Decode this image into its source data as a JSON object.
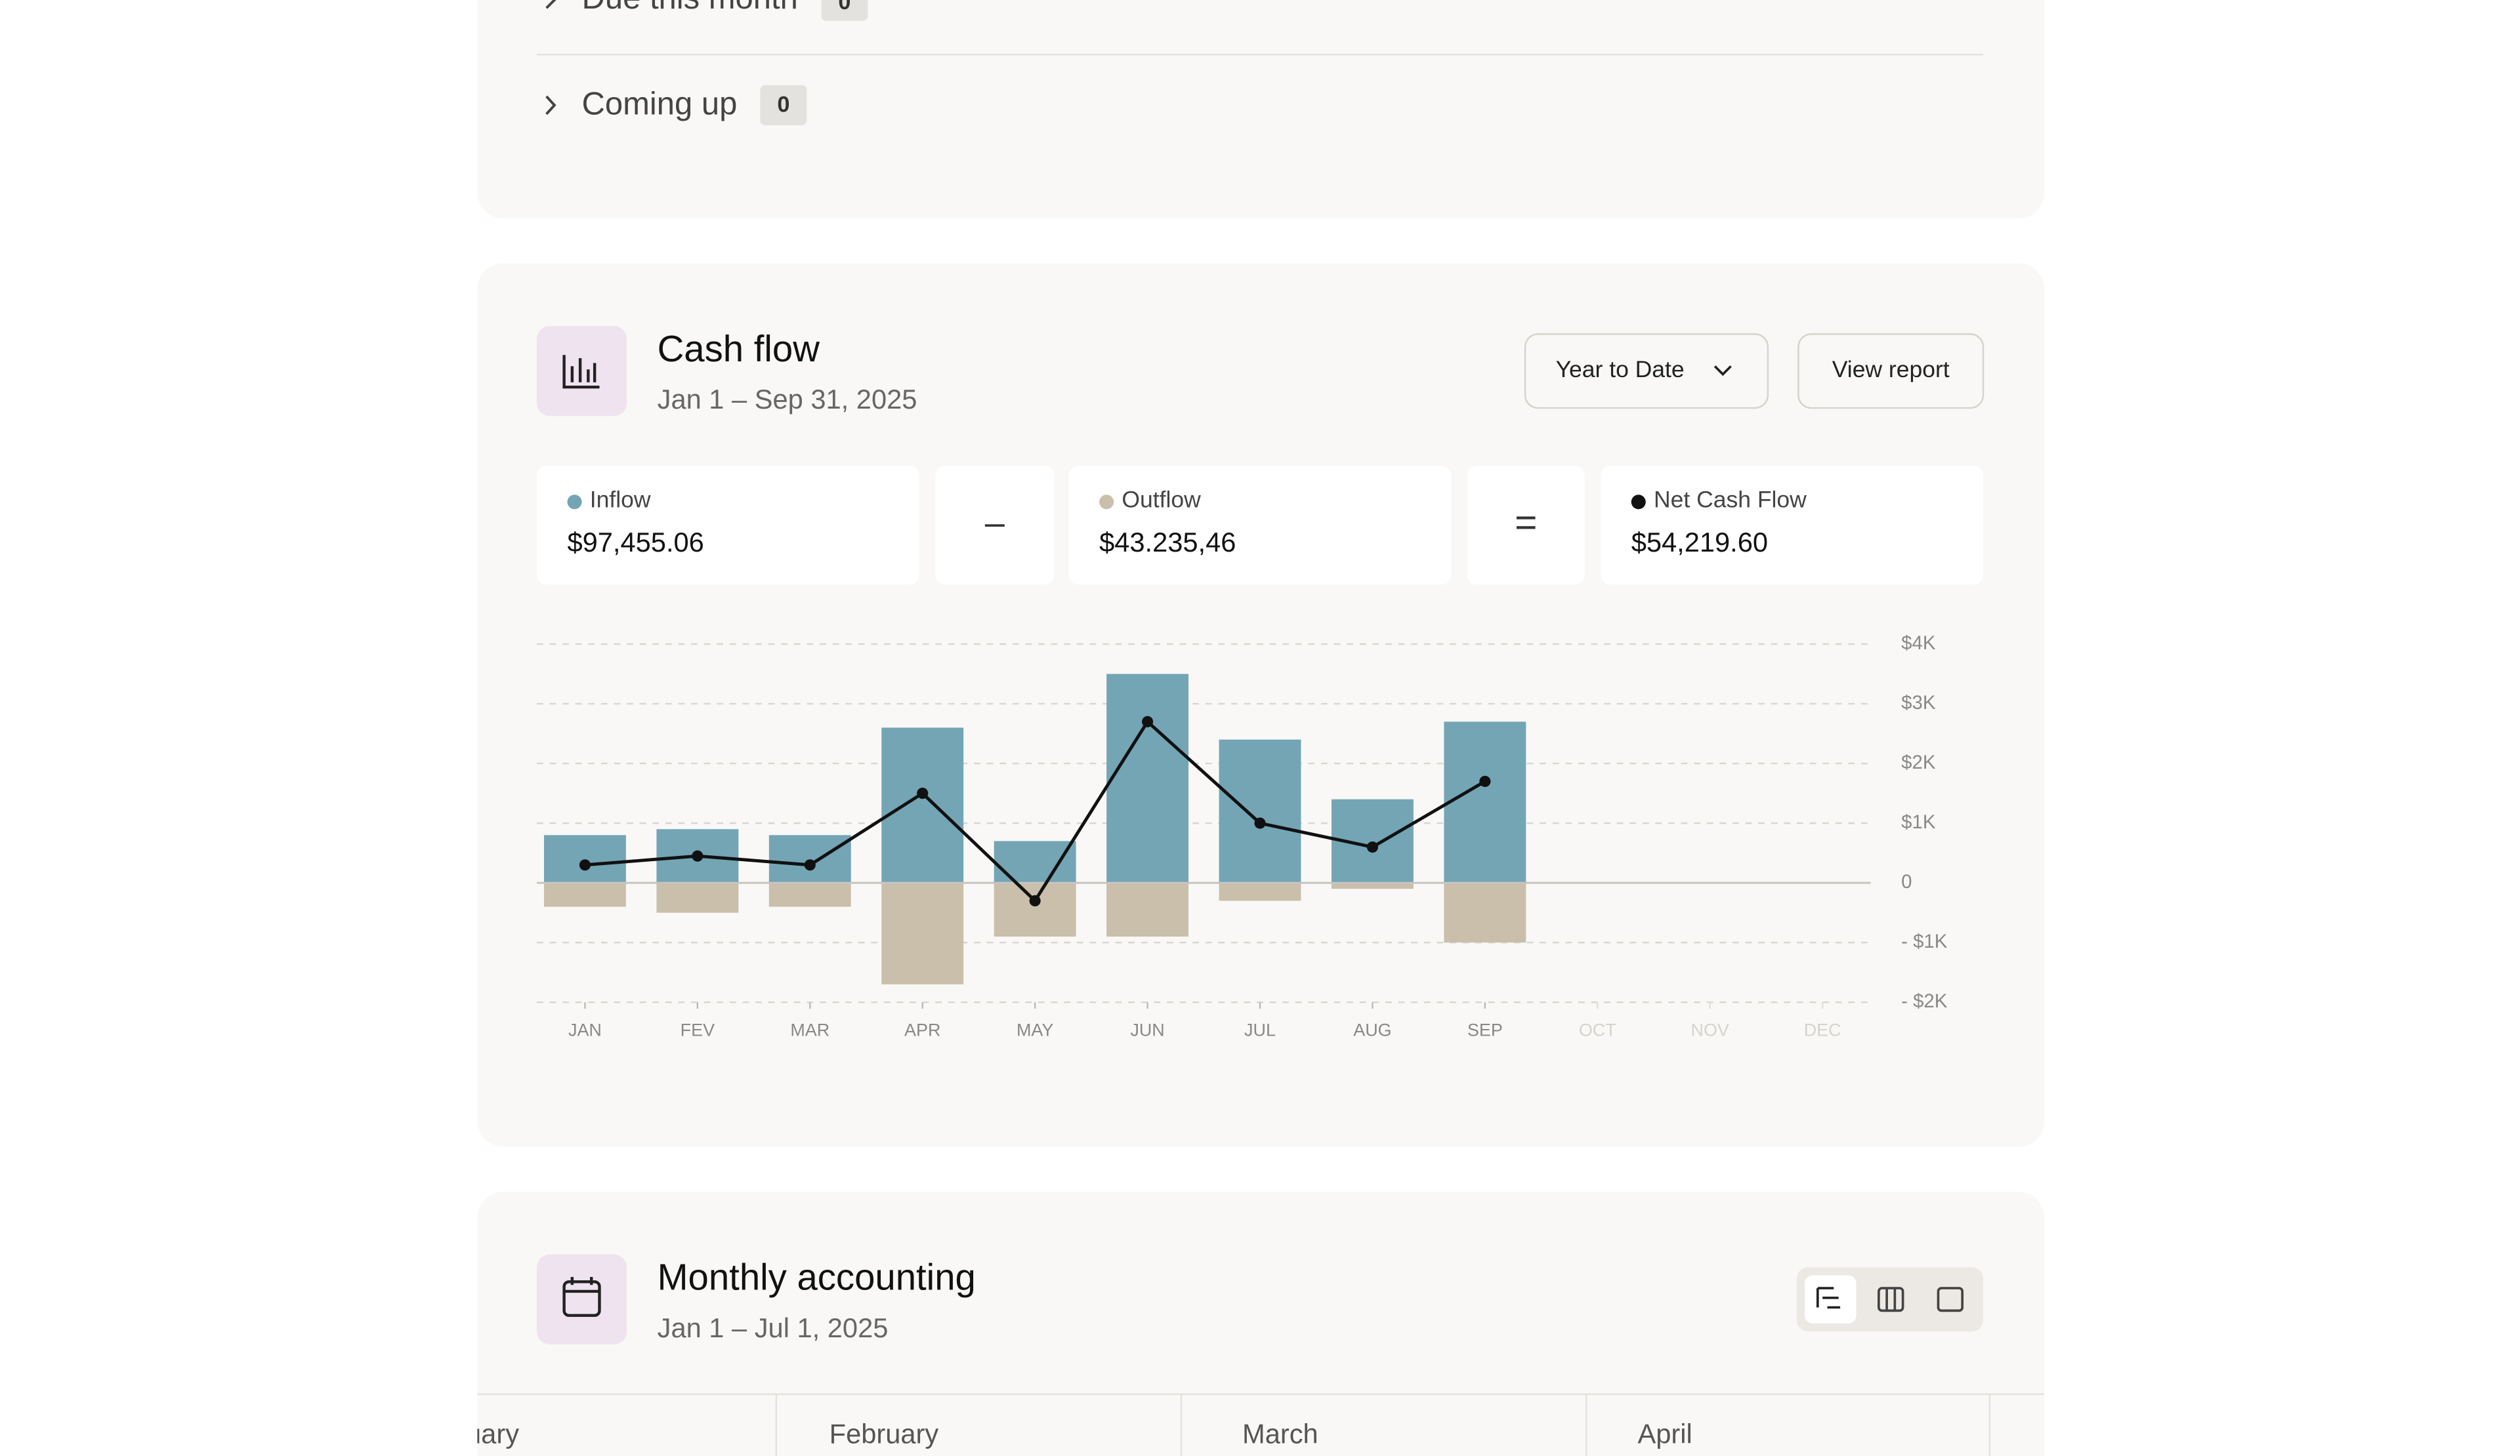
{
  "upcoming": {
    "groups": [
      {
        "label": "Due this month",
        "count": "0"
      },
      {
        "label": "Coming up",
        "count": "0"
      }
    ]
  },
  "cash_flow": {
    "title": "Cash flow",
    "subtitle": "Jan 1 – Sep 31, 2025",
    "period_button": "Year to Date",
    "report_button": "View report",
    "totals": [
      "$97,455.06",
      "$43.235,46",
      "$54,219.60"
    ],
    "operators": [
      "–",
      "="
    ]
  },
  "chart_data": {
    "type": "bar_line",
    "categories": [
      "JAN",
      "FEV",
      "MAR",
      "APR",
      "MAY",
      "JUN",
      "JUL",
      "AUG",
      "SEP",
      "OCT",
      "NOV",
      "DEC"
    ],
    "series": [
      {
        "name": "Inflow",
        "color": "#73a5b5",
        "values": [
          800,
          900,
          800,
          2600,
          700,
          3500,
          2400,
          1400,
          2700,
          null,
          null,
          null
        ]
      },
      {
        "name": "Outflow",
        "color": "#c9bfab",
        "values": [
          -400,
          -500,
          -400,
          -1700,
          -900,
          -900,
          -300,
          -100,
          -1000,
          null,
          null,
          null
        ]
      },
      {
        "name": "Net Cash Flow",
        "color": "#111111",
        "values": [
          300,
          450,
          300,
          1500,
          -300,
          2700,
          1000,
          600,
          1700,
          null,
          null,
          null
        ]
      }
    ],
    "ylim": [
      -2000,
      4000
    ],
    "yticks": [
      {
        "value": 4000,
        "label": "$4K"
      },
      {
        "value": 3000,
        "label": "$3K"
      },
      {
        "value": 2000,
        "label": "$2K"
      },
      {
        "value": 1000,
        "label": "$1K"
      },
      0,
      {
        "value": -1000,
        "label": "- $1K"
      },
      {
        "value": -2000,
        "label": "- $2K"
      }
    ],
    "grid": true
  },
  "monthly": {
    "title": "Monthly accounting",
    "subtitle": "Jan 1 – Jul 1, 2025",
    "months": [
      "January",
      "February",
      "March",
      "April"
    ]
  }
}
